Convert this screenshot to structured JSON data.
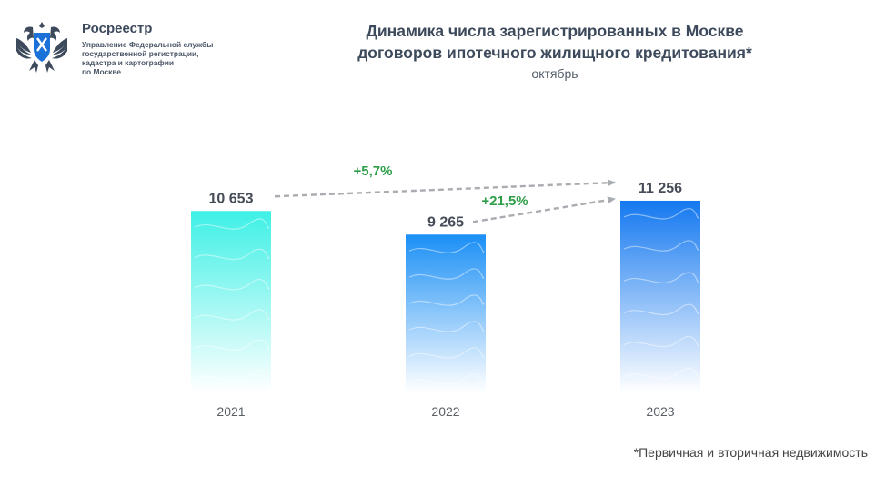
{
  "org": {
    "name": "Росреестр",
    "subtitle_lines": [
      "Управление Федеральной службы",
      "государственной регистрации,",
      "кадастра и картографии",
      "по Москве"
    ]
  },
  "chart_data": {
    "type": "bar",
    "title_lines": [
      "Динамика числа зарегистрированных в Москве",
      "договоров ипотечного жилищного кредитования*"
    ],
    "subtitle": "октябрь",
    "categories": [
      "2021",
      "2022",
      "2023"
    ],
    "values": [
      10653,
      9265,
      11256
    ],
    "value_labels": [
      "10 653",
      "9 265",
      "11 256"
    ],
    "changes": [
      {
        "from": "2021",
        "to": "2023",
        "label": "+5,7%"
      },
      {
        "from": "2022",
        "to": "2023",
        "label": "+21,5%"
      }
    ],
    "footnote": "*Первичная и вторичная недвижимость",
    "colors": {
      "bar_2021_top": "#3ef0e6",
      "bar_2022_top": "#1a8ff5",
      "bar_2023_top": "#1478f0",
      "bar_bottom": "#ffffff",
      "change_label": "#2e9e4a",
      "arrow": "#a9acb1",
      "value_label": "#454c57",
      "axis_label": "#5a5f66"
    }
  }
}
